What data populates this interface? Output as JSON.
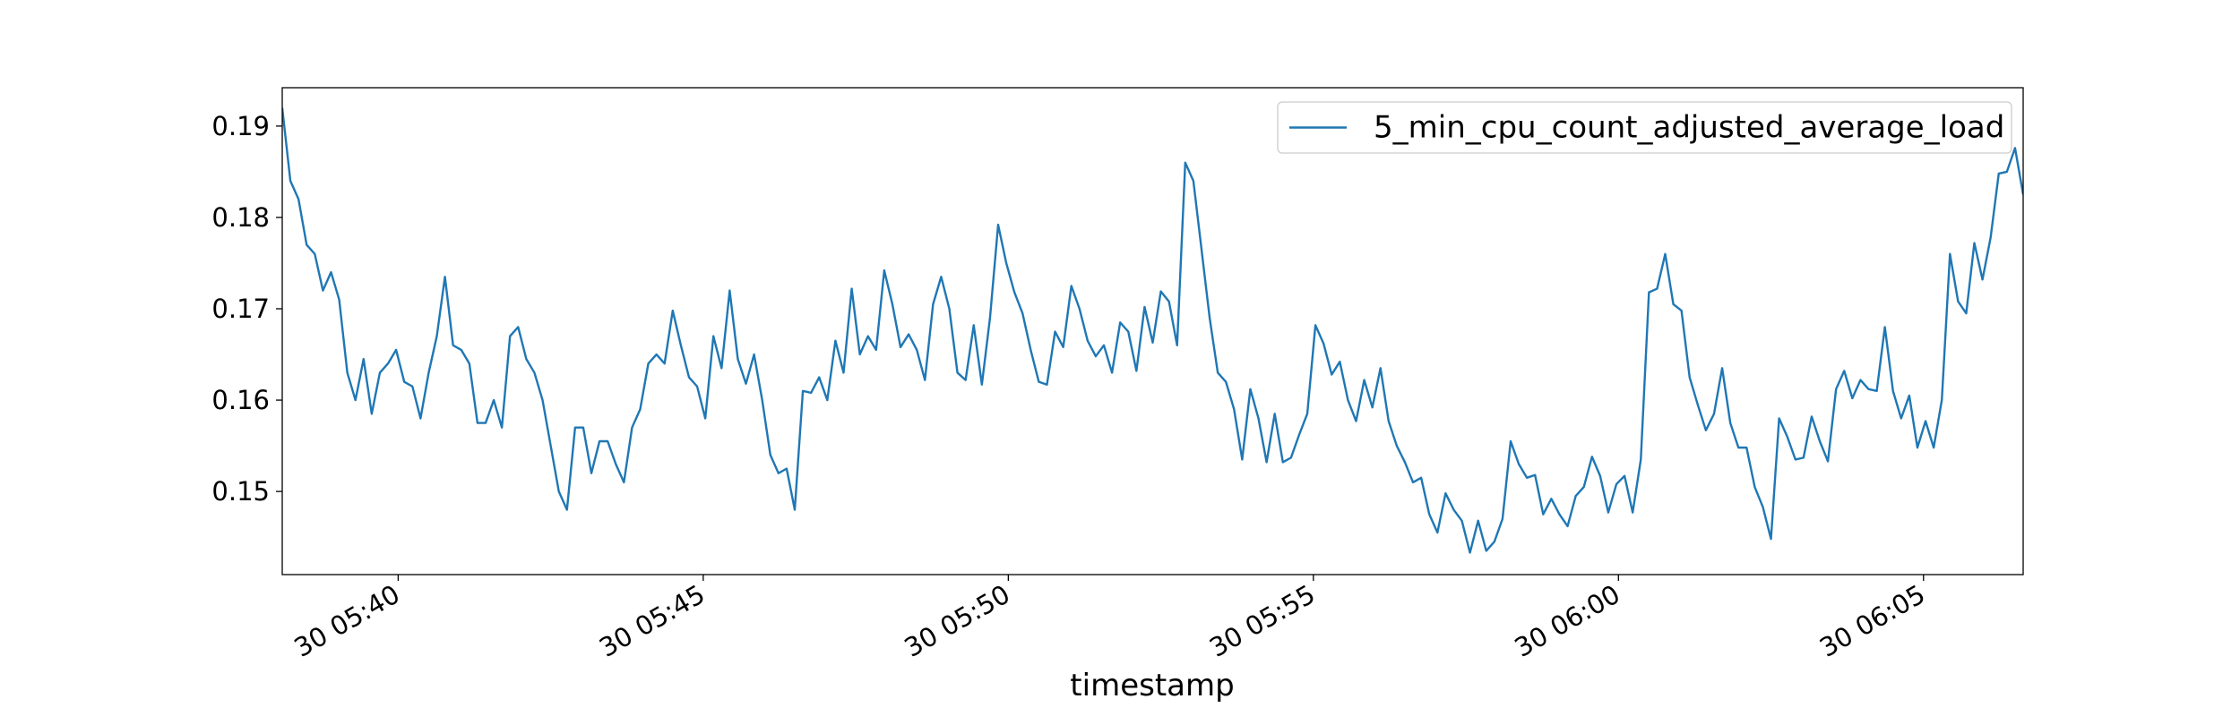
{
  "chart_data": {
    "type": "line",
    "x_label": "timestamp",
    "xlim": [
      "30 05:38:06",
      "30 06:06:38"
    ],
    "xticks": [
      "30 05:40",
      "30 05:45",
      "30 05:50",
      "30 05:55",
      "30 06:00",
      "30 06:05"
    ],
    "ylim": [
      0.1409,
      0.1942
    ],
    "yticks": [
      0.15,
      0.16,
      0.17,
      0.18,
      0.19
    ],
    "grid": false,
    "legend": "upper right",
    "x": [
      "30 05:38:06",
      "30 05:38:14",
      "30 05:38:22",
      "30 05:38:30",
      "30 05:38:38",
      "30 05:38:46",
      "30 05:38:54",
      "30 05:39:02",
      "30 05:39:10",
      "30 05:39:18",
      "30 05:39:26",
      "30 05:39:34",
      "30 05:39:42",
      "30 05:39:50",
      "30 05:39:58",
      "30 05:40:06",
      "30 05:40:14",
      "30 05:40:22",
      "30 05:40:30",
      "30 05:40:38",
      "30 05:40:46",
      "30 05:40:54",
      "30 05:41:02",
      "30 05:41:10",
      "30 05:41:18",
      "30 05:41:26",
      "30 05:41:34",
      "30 05:41:42",
      "30 05:41:50",
      "30 05:41:58",
      "30 05:42:06",
      "30 05:42:14",
      "30 05:42:22",
      "30 05:42:30",
      "30 05:42:38",
      "30 05:42:46",
      "30 05:42:54",
      "30 05:43:02",
      "30 05:43:10",
      "30 05:43:18",
      "30 05:43:26",
      "30 05:43:34",
      "30 05:43:42",
      "30 05:43:50",
      "30 05:43:58",
      "30 05:44:06",
      "30 05:44:14",
      "30 05:44:22",
      "30 05:44:30",
      "30 05:44:38",
      "30 05:44:46",
      "30 05:44:54",
      "30 05:45:02",
      "30 05:45:10",
      "30 05:45:18",
      "30 05:45:26",
      "30 05:45:34",
      "30 05:45:42",
      "30 05:45:50",
      "30 05:45:58",
      "30 05:46:06",
      "30 05:46:14",
      "30 05:46:22",
      "30 05:46:30",
      "30 05:46:38",
      "30 05:46:46",
      "30 05:46:54",
      "30 05:47:02",
      "30 05:47:10",
      "30 05:47:18",
      "30 05:47:26",
      "30 05:47:34",
      "30 05:47:42",
      "30 05:47:50",
      "30 05:47:58",
      "30 05:48:06",
      "30 05:48:14",
      "30 05:48:22",
      "30 05:48:30",
      "30 05:48:38",
      "30 05:48:46",
      "30 05:48:54",
      "30 05:49:02",
      "30 05:49:10",
      "30 05:49:18",
      "30 05:49:26",
      "30 05:49:34",
      "30 05:49:42",
      "30 05:49:50",
      "30 05:49:58",
      "30 05:50:06",
      "30 05:50:14",
      "30 05:50:22",
      "30 05:50:30",
      "30 05:50:38",
      "30 05:50:46",
      "30 05:50:54",
      "30 05:51:02",
      "30 05:51:10",
      "30 05:51:18",
      "30 05:51:26",
      "30 05:51:34",
      "30 05:51:42",
      "30 05:51:50",
      "30 05:51:58",
      "30 05:52:06",
      "30 05:52:14",
      "30 05:52:22",
      "30 05:52:30",
      "30 05:52:38",
      "30 05:52:46",
      "30 05:52:54",
      "30 05:53:02",
      "30 05:53:10",
      "30 05:53:18",
      "30 05:53:26",
      "30 05:53:34",
      "30 05:53:42",
      "30 05:53:50",
      "30 05:53:58",
      "30 05:54:06",
      "30 05:54:14",
      "30 05:54:22",
      "30 05:54:30",
      "30 05:54:38",
      "30 05:54:46",
      "30 05:54:54",
      "30 05:55:02",
      "30 05:55:10",
      "30 05:55:18",
      "30 05:55:26",
      "30 05:55:34",
      "30 05:55:42",
      "30 05:55:50",
      "30 05:55:58",
      "30 05:56:06",
      "30 05:56:14",
      "30 05:56:22",
      "30 05:56:30",
      "30 05:56:38",
      "30 05:56:46",
      "30 05:56:54",
      "30 05:57:02",
      "30 05:57:10",
      "30 05:57:18",
      "30 05:57:26",
      "30 05:57:34",
      "30 05:57:42",
      "30 05:57:50",
      "30 05:57:58",
      "30 05:58:06",
      "30 05:58:14",
      "30 05:58:22",
      "30 05:58:30",
      "30 05:58:38",
      "30 05:58:46",
      "30 05:58:54",
      "30 05:59:02",
      "30 05:59:10",
      "30 05:59:18",
      "30 05:59:26",
      "30 05:59:34",
      "30 05:59:42",
      "30 05:59:50",
      "30 05:59:58",
      "30 06:00:06",
      "30 06:00:14",
      "30 06:00:22",
      "30 06:00:30",
      "30 06:00:38",
      "30 06:00:46",
      "30 06:00:54",
      "30 06:01:02",
      "30 06:01:10",
      "30 06:01:18",
      "30 06:01:26",
      "30 06:01:34",
      "30 06:01:42",
      "30 06:01:50",
      "30 06:01:58",
      "30 06:02:06",
      "30 06:02:14",
      "30 06:02:22",
      "30 06:02:30",
      "30 06:02:38",
      "30 06:02:46",
      "30 06:02:54",
      "30 06:03:02",
      "30 06:03:10",
      "30 06:03:18",
      "30 06:03:26",
      "30 06:03:34",
      "30 06:03:42",
      "30 06:03:50",
      "30 06:03:58",
      "30 06:04:06",
      "30 06:04:14",
      "30 06:04:22",
      "30 06:04:30",
      "30 06:04:38",
      "30 06:04:46",
      "30 06:04:54",
      "30 06:05:02",
      "30 06:05:10",
      "30 06:05:18",
      "30 06:05:26",
      "30 06:05:34",
      "30 06:05:42",
      "30 06:05:50",
      "30 06:05:58",
      "30 06:06:06",
      "30 06:06:14",
      "30 06:06:22",
      "30 06:06:30",
      "30 06:06:38"
    ],
    "series": [
      {
        "name": "5_min_cpu_count_adjusted_average_load",
        "color": "#1f77b4",
        "values": [
          0.192,
          0.184,
          0.182,
          0.177,
          0.176,
          0.172,
          0.174,
          0.171,
          0.163,
          0.16,
          0.1645,
          0.1585,
          0.163,
          0.164,
          0.1655,
          0.162,
          0.1615,
          0.158,
          0.163,
          0.167,
          0.1735,
          0.166,
          0.1655,
          0.164,
          0.1575,
          0.1575,
          0.16,
          0.157,
          0.167,
          0.168,
          0.1645,
          0.163,
          0.16,
          0.155,
          0.15,
          0.148,
          0.157,
          0.157,
          0.152,
          0.1555,
          0.1555,
          0.153,
          0.151,
          0.157,
          0.159,
          0.164,
          0.165,
          0.164,
          0.1698,
          0.166,
          0.1625,
          0.1615,
          0.158,
          0.167,
          0.1635,
          0.172,
          0.1645,
          0.1618,
          0.165,
          0.16,
          0.154,
          0.152,
          0.1525,
          0.148,
          0.161,
          0.1608,
          0.1625,
          0.16,
          0.1665,
          0.163,
          0.1722,
          0.165,
          0.167,
          0.1655,
          0.1742,
          0.1705,
          0.1658,
          0.1672,
          0.1655,
          0.1622,
          0.1705,
          0.1735,
          0.17,
          0.163,
          0.1622,
          0.1682,
          0.1617,
          0.169,
          0.1792,
          0.175,
          0.1718,
          0.1695,
          0.1655,
          0.162,
          0.1617,
          0.1675,
          0.1658,
          0.1725,
          0.17,
          0.1665,
          0.1648,
          0.166,
          0.163,
          0.1685,
          0.1675,
          0.1632,
          0.1702,
          0.1663,
          0.1719,
          0.1708,
          0.166,
          0.186,
          0.184,
          0.1765,
          0.169,
          0.163,
          0.162,
          0.159,
          0.1535,
          0.1612,
          0.158,
          0.1532,
          0.1585,
          0.1532,
          0.1537,
          0.1562,
          0.1585,
          0.1682,
          0.1662,
          0.1628,
          0.1642,
          0.16,
          0.1577,
          0.1622,
          0.1592,
          0.1635,
          0.1577,
          0.155,
          0.1532,
          0.151,
          0.1515,
          0.1475,
          0.1455,
          0.1498,
          0.148,
          0.1468,
          0.1433,
          0.1468,
          0.1435,
          0.1445,
          0.147,
          0.1555,
          0.153,
          0.1515,
          0.1518,
          0.1475,
          0.1492,
          0.1475,
          0.1462,
          0.1495,
          0.1505,
          0.1538,
          0.1517,
          0.1477,
          0.1508,
          0.1517,
          0.1477,
          0.1535,
          0.1718,
          0.1722,
          0.176,
          0.1705,
          0.1698,
          0.1625,
          0.1595,
          0.1567,
          0.1585,
          0.1635,
          0.1575,
          0.1548,
          0.1548,
          0.1505,
          0.1483,
          0.1448,
          0.158,
          0.156,
          0.1535,
          0.1537,
          0.1582,
          0.1555,
          0.1533,
          0.1612,
          0.1632,
          0.1602,
          0.1622,
          0.1612,
          0.161,
          0.168,
          0.161,
          0.158,
          0.1605,
          0.1548,
          0.1577,
          0.1548,
          0.16,
          0.176,
          0.1708,
          0.1695,
          0.1772,
          0.1732,
          0.1778,
          0.1848,
          0.185,
          0.1876,
          0.1825
        ]
      }
    ]
  }
}
